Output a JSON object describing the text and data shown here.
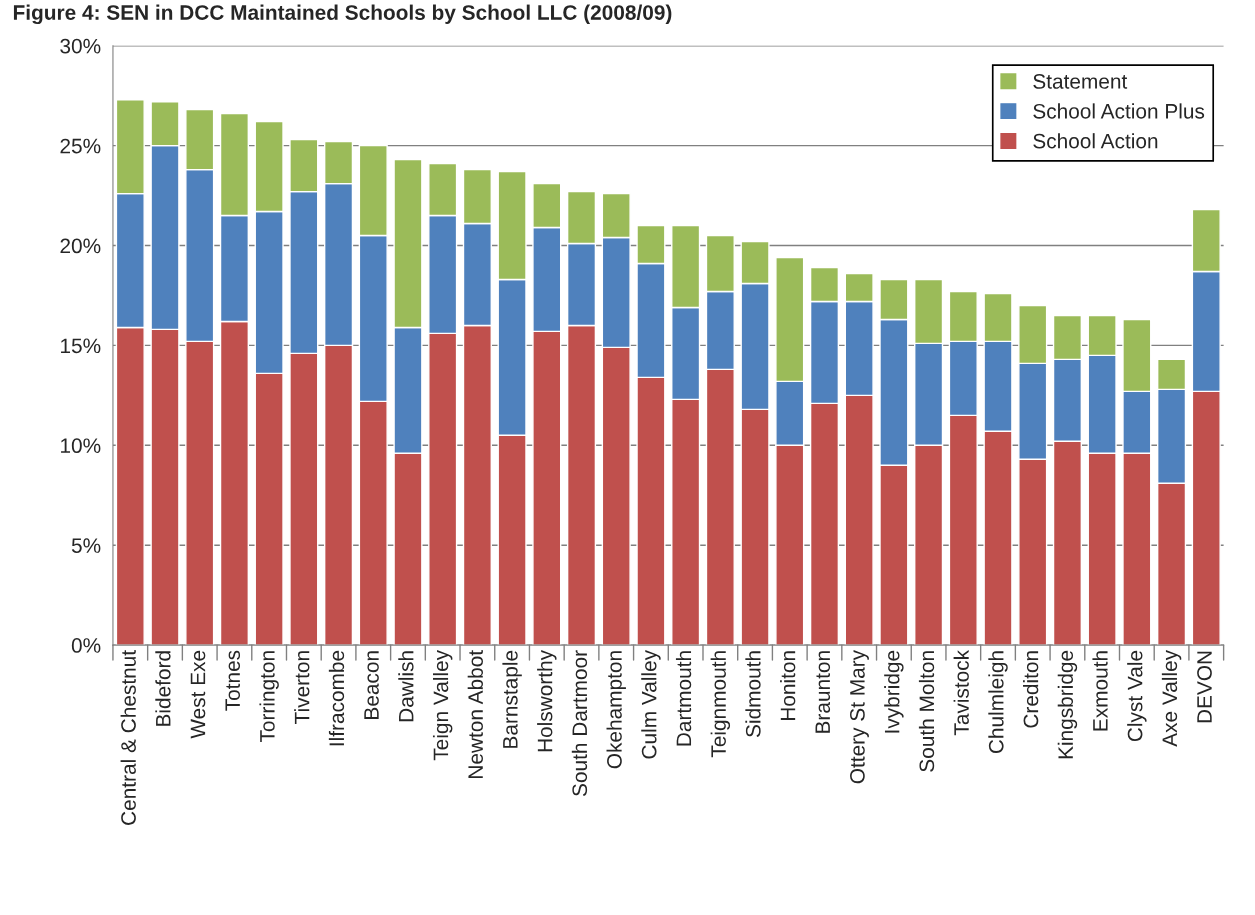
{
  "chart_data": {
    "type": "bar",
    "title": "Figure 4: SEN in DCC Maintained Schools by School LLC (2008/09)",
    "stacked": true,
    "categories": [
      "Central & Chestnut",
      "Bideford",
      "West Exe",
      "Totnes",
      "Torrington",
      "Tiverton",
      "Ilfracombe",
      "Beacon",
      "Dawlish",
      "Teign Valley",
      "Newton Abbot",
      "Barnstaple",
      "Holsworthy",
      "South Dartmoor",
      "Okehampton",
      "Culm Valley",
      "Dartmouth",
      "Teignmouth",
      "Sidmouth",
      "Honiton",
      "Braunton",
      "Ottery St Mary",
      "Ivybridge",
      "South Molton",
      "Tavistock",
      "Chulmleigh",
      "Crediton",
      "Kingsbridge",
      "Exmouth",
      "Clyst Vale",
      "Axe Valley",
      "DEVON"
    ],
    "series": [
      {
        "name": "School Action",
        "color": "#c0504d",
        "values": [
          15.9,
          15.8,
          15.2,
          16.2,
          13.6,
          14.6,
          15.0,
          12.2,
          9.6,
          15.6,
          16.0,
          10.5,
          15.7,
          16.0,
          14.9,
          13.4,
          12.3,
          13.8,
          11.8,
          10.0,
          12.1,
          12.5,
          9.0,
          10.0,
          11.5,
          10.7,
          9.3,
          10.2,
          9.6,
          9.6,
          8.1,
          12.7
        ]
      },
      {
        "name": "School Action Plus",
        "color": "#4f81bd",
        "values": [
          6.7,
          9.2,
          8.6,
          5.3,
          8.1,
          8.1,
          8.1,
          8.3,
          6.3,
          5.9,
          5.1,
          7.8,
          5.2,
          4.1,
          5.5,
          5.7,
          4.6,
          3.9,
          6.3,
          3.2,
          5.1,
          4.7,
          7.3,
          5.1,
          3.7,
          4.5,
          4.8,
          4.1,
          4.9,
          3.1,
          4.7,
          6.0
        ]
      },
      {
        "name": "Statement",
        "color": "#9bbb59",
        "values": [
          4.7,
          2.2,
          3.0,
          5.1,
          4.5,
          2.6,
          2.1,
          4.5,
          8.4,
          2.6,
          2.7,
          5.4,
          2.2,
          2.6,
          2.2,
          1.9,
          4.1,
          2.8,
          2.1,
          6.2,
          1.7,
          1.4,
          2.0,
          3.2,
          2.5,
          2.4,
          2.9,
          2.2,
          2.0,
          3.6,
          1.5,
          3.1
        ]
      }
    ],
    "ylim": [
      0,
      30
    ],
    "yticks": [
      {
        "value": 0,
        "label": "0%"
      },
      {
        "value": 5,
        "label": "5%"
      },
      {
        "value": 10,
        "label": "10%"
      },
      {
        "value": 15,
        "label": "15%"
      },
      {
        "value": 20,
        "label": "20%"
      },
      {
        "value": 25,
        "label": "25%"
      },
      {
        "value": 30,
        "label": "30%"
      }
    ],
    "grid": "y",
    "legend": "top right"
  }
}
